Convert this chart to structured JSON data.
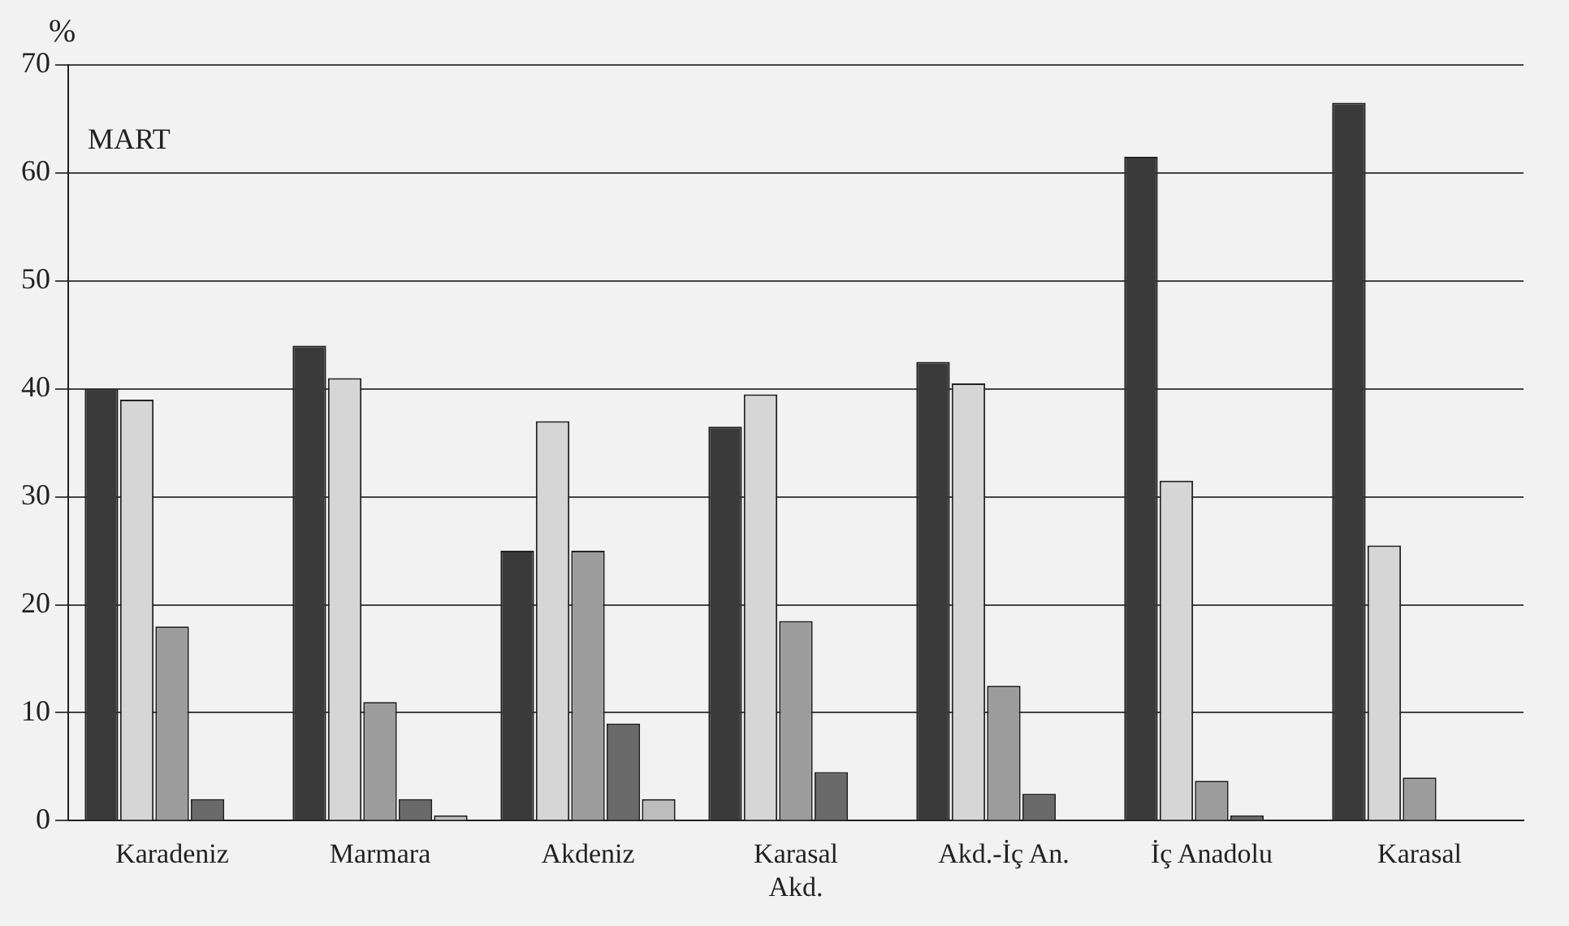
{
  "chart_data": {
    "type": "bar",
    "ylabel": "%",
    "annotations": [
      "MART"
    ],
    "categories": [
      "Karadeniz",
      "Marmara",
      "Akdeniz",
      "Karasal Akd.",
      "Akd.-İç An.",
      "İç Anadolu",
      "Karasal"
    ],
    "series": [
      {
        "color": "#3a3a3a",
        "values": [
          40,
          44,
          25,
          36.5,
          42.5,
          61.5,
          66.5
        ]
      },
      {
        "color": "#d6d6d6",
        "values": [
          39,
          41,
          37,
          39.5,
          40.5,
          31.5,
          25.5
        ]
      },
      {
        "color": "#9c9c9c",
        "values": [
          18,
          11,
          25,
          18.5,
          12.5,
          3.7,
          4
        ]
      },
      {
        "color": "#6a6a6a",
        "values": [
          2,
          2,
          9,
          4.5,
          2.5,
          0.5,
          null
        ]
      },
      {
        "color": "#bdbdbd",
        "values": [
          null,
          0.5,
          2,
          null,
          null,
          null,
          null
        ]
      }
    ],
    "ylim": [
      0,
      70
    ],
    "yticks": [
      0,
      10,
      20,
      30,
      40,
      50,
      60,
      70
    ],
    "grid": "y",
    "legend": false
  }
}
